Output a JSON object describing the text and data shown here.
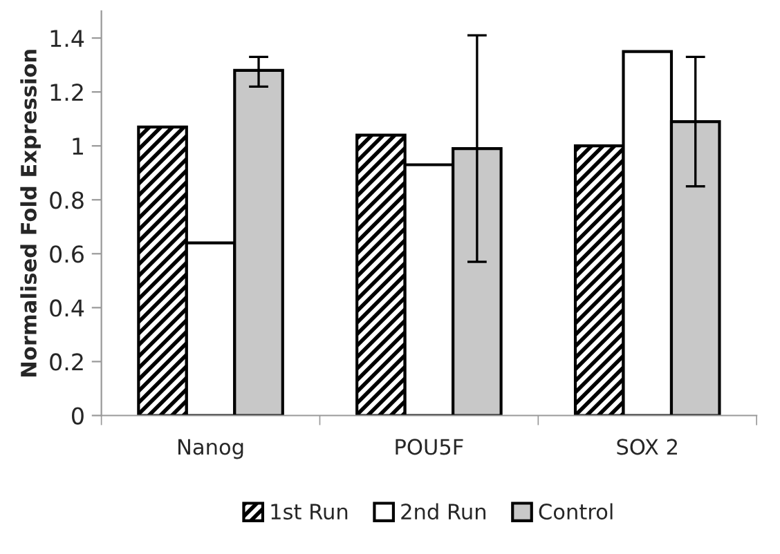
{
  "chart_data": {
    "type": "bar",
    "ylabel": "Normalised Fold Expression",
    "categories": [
      "Nanog",
      "POU5F",
      "SOX 2"
    ],
    "series": [
      {
        "name": "1st Run",
        "color": "#000000",
        "values": [
          1.07,
          1.04,
          1.0
        ]
      },
      {
        "name": "2nd Run",
        "color": "#ffffff",
        "values": [
          0.64,
          0.93,
          1.35
        ]
      },
      {
        "name": "Control",
        "color": "#c8c8c8",
        "values": [
          1.28,
          0.99,
          1.09
        ],
        "errors": [
          [
            1.22,
            1.33
          ],
          [
            0.57,
            1.41
          ],
          [
            0.85,
            1.33
          ]
        ]
      }
    ],
    "ylim": [
      0,
      1.5
    ],
    "yticks": [
      0,
      0.2,
      0.4,
      0.6,
      0.8,
      1,
      1.2,
      1.4
    ],
    "grid": false,
    "legend": "bottom"
  }
}
